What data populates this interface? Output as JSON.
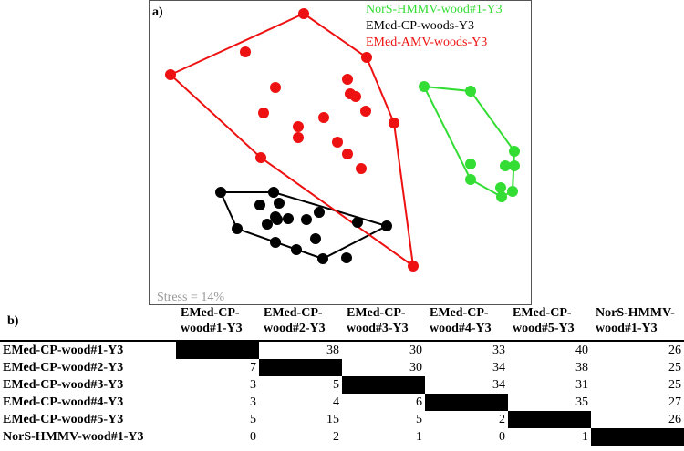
{
  "chart_data": [
    {
      "type": "scatter",
      "panel_label": "a)",
      "annotation": "Stress = 14%",
      "legend_position": "top-right",
      "series": [
        {
          "name": "NorS-HMMV-wood#1-Y3",
          "color": "#33dd33",
          "points": [
            [
              465,
              95
            ],
            [
              516,
              100
            ],
            [
              564,
              166
            ],
            [
              516,
              180
            ],
            [
              554,
              182
            ],
            [
              564,
              182
            ],
            [
              516,
              197
            ],
            [
              549,
              206
            ],
            [
              562,
              210
            ],
            [
              550,
              216
            ]
          ],
          "hull": [
            [
              465,
              95
            ],
            [
              516,
              100
            ],
            [
              564,
              166
            ],
            [
              562,
              210
            ],
            [
              550,
              216
            ],
            [
              516,
              197
            ]
          ]
        },
        {
          "name": "EMed-CP-woods-Y3",
          "color": "#000000",
          "points": [
            [
              242,
              211
            ],
            [
              300,
              211
            ],
            [
              285,
              225
            ],
            [
              306,
              223
            ],
            [
              302,
              238
            ],
            [
              350,
              233
            ],
            [
              293,
              246
            ],
            [
              304,
              241
            ],
            [
              316,
              240
            ],
            [
              336,
              241
            ],
            [
              260,
              251
            ],
            [
              392,
              244
            ],
            [
              424,
              248
            ],
            [
              302,
              266
            ],
            [
              325,
              274
            ],
            [
              346,
              262
            ],
            [
              380,
              283
            ],
            [
              354,
              284
            ]
          ],
          "hull": [
            [
              242,
              211
            ],
            [
              300,
              211
            ],
            [
              424,
              248
            ],
            [
              354,
              284
            ],
            [
              260,
              251
            ]
          ]
        },
        {
          "name": "EMed-AMV-woods-Y3",
          "color": "#ee1111",
          "points": [
            [
              333,
              15
            ],
            [
              269,
              57
            ],
            [
              402,
              63
            ],
            [
              187,
              82
            ],
            [
              381,
              87
            ],
            [
              302,
              96
            ],
            [
              384,
              103
            ],
            [
              390,
              106
            ],
            [
              289,
              124
            ],
            [
              401,
              122
            ],
            [
              355,
              129
            ],
            [
              327,
              139
            ],
            [
              432,
              135
            ],
            [
              327,
              151
            ],
            [
              370,
              156
            ],
            [
              381,
              169
            ],
            [
              286,
              173
            ],
            [
              396,
              185
            ],
            [
              453,
              292
            ]
          ],
          "hull": [
            [
              333,
              15
            ],
            [
              402,
              63
            ],
            [
              432,
              135
            ],
            [
              453,
              292
            ],
            [
              286,
              173
            ],
            [
              187,
              82
            ]
          ]
        }
      ]
    },
    {
      "type": "table",
      "panel_label": "b)",
      "columns": [
        [
          "EMed-CP-",
          "wood#1-Y3"
        ],
        [
          "EMed-CP-",
          "wood#2-Y3"
        ],
        [
          "EMed-CP-",
          "wood#3-Y3"
        ],
        [
          "EMed-CP-",
          "wood#4-Y3"
        ],
        [
          "EMed-CP-",
          "wood#5-Y3"
        ],
        [
          "NorS-HMMV-",
          "wood#1-Y3"
        ]
      ],
      "rows": [
        {
          "label": "EMed-CP-wood#1-Y3",
          "cells": [
            null,
            "38",
            "30",
            "33",
            "40",
            "26"
          ]
        },
        {
          "label": "EMed-CP-wood#2-Y3",
          "cells": [
            "7",
            null,
            "30",
            "34",
            "38",
            "25"
          ]
        },
        {
          "label": "EMed-CP-wood#3-Y3",
          "cells": [
            "3",
            "5",
            null,
            "34",
            "31",
            "25"
          ]
        },
        {
          "label": "EMed-CP-wood#4-Y3",
          "cells": [
            "3",
            "4",
            "6",
            null,
            "35",
            "27"
          ]
        },
        {
          "label": "EMed-CP-wood#5-Y3",
          "cells": [
            "5",
            "15",
            "5",
            "2",
            null,
            "26"
          ]
        },
        {
          "label": "NorS-HMMV-wood#1-Y3",
          "cells": [
            "0",
            "2",
            "1",
            "0",
            "1",
            null
          ]
        }
      ]
    }
  ]
}
